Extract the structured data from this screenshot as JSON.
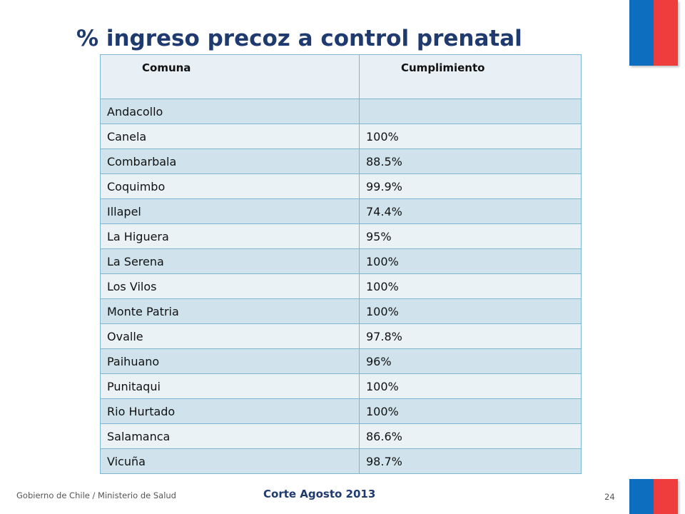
{
  "slide": {
    "title": "% ingreso precoz a control prenatal",
    "footer_left": "Gobierno de Chile / Ministerio de Salud",
    "footer_center": "Corte Agosto 2013",
    "page_number": "24"
  },
  "colors": {
    "title": "#1f3a6e",
    "flag_blue": "#0d6ec0",
    "flag_red": "#ef3c3c",
    "row_dark": "#d0e3ec",
    "row_light": "#eaf2f6",
    "border": "#7db8d0"
  },
  "table": {
    "headers": [
      "Comuna",
      "Cumplimiento"
    ],
    "rows": [
      [
        "Andacollo",
        ""
      ],
      [
        "Canela",
        "100%"
      ],
      [
        "Combarbala",
        "88.5%"
      ],
      [
        "Coquimbo",
        "99.9%"
      ],
      [
        "Illapel",
        "74.4%"
      ],
      [
        "La Higuera",
        "95%"
      ],
      [
        "La Serena",
        "100%"
      ],
      [
        "Los Vilos",
        "100%"
      ],
      [
        "Monte Patria",
        "100%"
      ],
      [
        "Ovalle",
        "97.8%"
      ],
      [
        "Paihuano",
        "96%"
      ],
      [
        "Punitaqui",
        "100%"
      ],
      [
        "Rio Hurtado",
        "100%"
      ],
      [
        "Salamanca",
        "86.6%"
      ],
      [
        "Vicuña",
        "98.7%"
      ]
    ]
  }
}
